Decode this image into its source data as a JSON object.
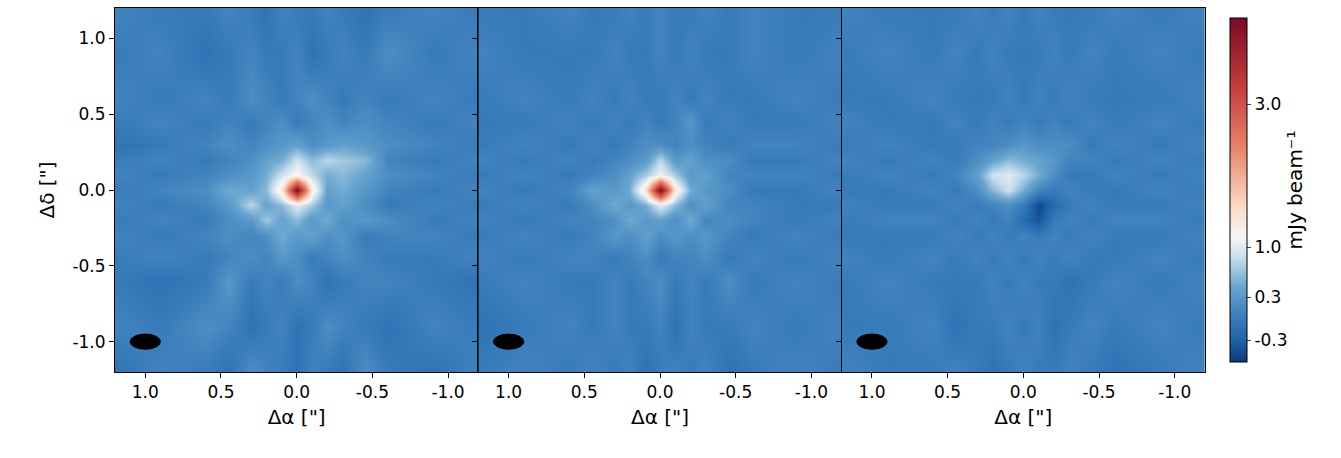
{
  "chart_data": [
    {
      "type": "heatmap",
      "x_label": "Δα [\"]",
      "y_label": "Δδ [\"]",
      "xlim": [
        1.2,
        -1.2
      ],
      "ylim": [
        -1.2,
        1.2
      ],
      "xticks": [
        {
          "value": 1,
          "label": "1.0"
        },
        0.5,
        {
          "value": 0,
          "label": "0.0"
        },
        -0.5,
        {
          "value": -1,
          "label": "-1.0"
        }
      ],
      "yticks": [
        {
          "value": -1,
          "label": "-1.0"
        },
        -0.5,
        {
          "value": 0,
          "label": "0.0"
        },
        0.5,
        {
          "value": 1,
          "label": "1.0"
        }
      ],
      "beam": {
        "x": 1.0,
        "y": -1.0,
        "major": 0.2,
        "minor": 0.1,
        "color": "#000000"
      },
      "x": [
        -1.2,
        -0.9,
        -0.6,
        -0.45,
        -0.3,
        -0.2,
        -0.1,
        0,
        0.1,
        0.2,
        0.3,
        0.45,
        0.6,
        0.9,
        1.2
      ],
      "y": [
        -1.2,
        -0.9,
        -0.6,
        -0.45,
        -0.3,
        -0.2,
        -0.1,
        0,
        0.1,
        0.2,
        0.3,
        0.45,
        0.6,
        0.9,
        1.2
      ],
      "z": [
        [
          0.1,
          -0.1,
          0.0,
          0.2,
          -0.1,
          0.0,
          0.1,
          -0.1,
          0.0,
          0.1,
          0.2,
          -0.1,
          0.0,
          0.1,
          -0.1
        ],
        [
          0.0,
          0.1,
          -0.1,
          0.0,
          0.1,
          0.2,
          0.0,
          -0.1,
          0.1,
          0.0,
          -0.1,
          0.1,
          0.2,
          0.0,
          0.1
        ],
        [
          -0.1,
          0.0,
          0.1,
          0.1,
          0.0,
          -0.1,
          0.1,
          0.2,
          0.0,
          0.1,
          0.0,
          0.3,
          0.0,
          -0.1,
          0.0
        ],
        [
          0.1,
          0.0,
          0.0,
          0.1,
          0.2,
          0.1,
          0.0,
          0.2,
          0.3,
          0.1,
          0.2,
          0.1,
          0.0,
          0.1,
          0.0
        ],
        [
          0.0,
          0.1,
          0.1,
          0.0,
          0.3,
          0.2,
          0.4,
          0.3,
          0.5,
          0.2,
          0.1,
          0.2,
          0.1,
          0.0,
          0.1
        ],
        [
          0.1,
          0.0,
          0.2,
          0.3,
          0.2,
          0.5,
          0.3,
          0.6,
          0.4,
          0.7,
          0.3,
          0.2,
          0.0,
          0.1,
          0.0
        ],
        [
          0.0,
          0.1,
          0.0,
          0.2,
          0.4,
          0.3,
          0.7,
          1.0,
          0.6,
          0.4,
          0.8,
          0.3,
          0.1,
          0.0,
          0.1
        ],
        [
          0.1,
          0.0,
          0.1,
          0.3,
          0.5,
          0.4,
          1.3,
          4.2,
          1.4,
          0.6,
          0.4,
          0.5,
          0.2,
          0.1,
          0.0
        ],
        [
          0.0,
          0.1,
          0.2,
          0.4,
          0.6,
          0.5,
          0.8,
          1.2,
          0.9,
          0.5,
          0.3,
          0.2,
          0.1,
          0.0,
          0.1
        ],
        [
          0.1,
          0.0,
          0.1,
          0.6,
          0.7,
          0.8,
          0.6,
          0.9,
          0.5,
          0.4,
          0.2,
          0.1,
          0.0,
          0.1,
          0.0
        ],
        [
          0.0,
          0.1,
          0.2,
          0.3,
          0.4,
          0.3,
          0.2,
          0.4,
          0.3,
          0.2,
          0.1,
          0.2,
          0.1,
          0.0,
          -0.1
        ],
        [
          0.1,
          0.0,
          0.1,
          0.2,
          0.1,
          0.2,
          0.1,
          0.0,
          0.2,
          0.1,
          0.0,
          0.1,
          0.0,
          0.1,
          0.0
        ],
        [
          0.0,
          0.1,
          0.0,
          0.1,
          0.0,
          0.1,
          0.2,
          0.1,
          0.0,
          0.1,
          0.2,
          0.0,
          0.1,
          0.0,
          0.1
        ],
        [
          0.1,
          0.0,
          0.2,
          0.0,
          0.1,
          0.0,
          -0.1,
          0.1,
          0.0,
          0.0,
          0.1,
          0.0,
          -0.1,
          0.1,
          0.0
        ],
        [
          0.0,
          0.1,
          0.0,
          -0.1,
          0.0,
          0.1,
          0.0,
          0.0,
          0.1,
          -0.1,
          0.0,
          0.1,
          0.0,
          0.0,
          0.1
        ]
      ]
    },
    {
      "type": "heatmap",
      "x_label": "Δα [\"]",
      "tick_labels": "x",
      "xlim": [
        1.2,
        -1.2
      ],
      "ylim": [
        -1.2,
        1.2
      ],
      "xticks": [
        {
          "value": 1,
          "label": "1.0"
        },
        0.5,
        {
          "value": 0,
          "label": "0.0"
        },
        -0.5,
        {
          "value": -1,
          "label": "-1.0"
        }
      ],
      "yticks": [
        {
          "value": -1,
          "label": "-1.0"
        },
        -0.5,
        {
          "value": 0,
          "label": "0.0"
        },
        0.5,
        {
          "value": 1,
          "label": "1.0"
        }
      ],
      "beam": {
        "x": 1.0,
        "y": -1.0,
        "major": 0.2,
        "minor": 0.1,
        "color": "#000000"
      },
      "x": [
        -1.2,
        -0.9,
        -0.6,
        -0.45,
        -0.3,
        -0.2,
        -0.1,
        0,
        0.1,
        0.2,
        0.3,
        0.45,
        0.6,
        0.9,
        1.2
      ],
      "y": [
        -1.2,
        -0.9,
        -0.6,
        -0.45,
        -0.3,
        -0.2,
        -0.1,
        0,
        0.1,
        0.2,
        0.3,
        0.45,
        0.6,
        0.9,
        1.2
      ],
      "z": [
        [
          0.0,
          0.1,
          0.0,
          -0.1,
          0.1,
          0.0,
          0.1,
          0.0,
          -0.1,
          0.1,
          0.0,
          0.1,
          0.0,
          0.1,
          0.0
        ],
        [
          0.1,
          0.0,
          0.1,
          0.0,
          0.0,
          0.1,
          -0.1,
          0.1,
          0.0,
          0.0,
          0.1,
          0.0,
          0.1,
          0.0,
          -0.1
        ],
        [
          0.0,
          0.1,
          0.0,
          0.2,
          0.0,
          0.1,
          0.0,
          0.2,
          0.1,
          0.0,
          0.1,
          0.0,
          0.0,
          0.1,
          0.0
        ],
        [
          0.1,
          0.0,
          0.1,
          0.0,
          0.2,
          0.1,
          0.1,
          0.0,
          0.2,
          0.1,
          0.0,
          0.1,
          0.1,
          0.0,
          0.1
        ],
        [
          0.0,
          0.1,
          0.0,
          0.1,
          0.3,
          0.2,
          0.3,
          0.2,
          0.4,
          0.2,
          0.3,
          0.1,
          0.0,
          0.1,
          0.0
        ],
        [
          0.1,
          0.0,
          0.1,
          0.2,
          0.1,
          0.5,
          0.2,
          0.4,
          0.3,
          0.5,
          0.2,
          0.1,
          0.1,
          0.0,
          0.1
        ],
        [
          0.0,
          0.0,
          0.1,
          0.1,
          0.4,
          0.2,
          0.6,
          1.0,
          0.5,
          0.3,
          0.5,
          0.2,
          0.0,
          0.1,
          0.0
        ],
        [
          0.1,
          0.0,
          0.0,
          0.2,
          0.3,
          0.5,
          1.3,
          4.2,
          1.4,
          0.5,
          0.3,
          0.4,
          0.1,
          0.0,
          0.1
        ],
        [
          0.0,
          0.1,
          0.1,
          0.1,
          0.4,
          0.3,
          0.7,
          1.1,
          0.7,
          0.4,
          0.2,
          0.1,
          0.0,
          0.1,
          0.0
        ],
        [
          0.1,
          0.0,
          0.0,
          0.2,
          0.2,
          0.4,
          0.3,
          0.8,
          0.3,
          0.2,
          0.1,
          0.0,
          0.1,
          0.0,
          0.1
        ],
        [
          0.0,
          0.1,
          0.1,
          0.0,
          0.1,
          0.2,
          0.1,
          0.2,
          0.2,
          0.1,
          0.0,
          0.1,
          0.0,
          0.1,
          0.0
        ],
        [
          0.1,
          0.0,
          0.0,
          0.1,
          0.0,
          0.3,
          0.1,
          0.0,
          0.1,
          0.0,
          0.1,
          0.0,
          0.1,
          0.0,
          0.0
        ],
        [
          0.0,
          0.1,
          0.0,
          0.0,
          0.1,
          0.0,
          0.1,
          0.0,
          0.0,
          0.1,
          0.0,
          0.1,
          0.0,
          0.1,
          0.0
        ],
        [
          0.1,
          0.0,
          0.1,
          0.0,
          0.0,
          0.1,
          0.0,
          0.1,
          0.0,
          0.0,
          0.1,
          0.0,
          0.0,
          0.0,
          0.1
        ],
        [
          0.0,
          0.0,
          0.1,
          0.0,
          0.1,
          0.0,
          0.0,
          0.1,
          0.0,
          0.1,
          0.0,
          0.0,
          0.1,
          0.0,
          0.0
        ]
      ]
    },
    {
      "type": "heatmap",
      "x_label": "Δα [\"]",
      "tick_labels": "x",
      "xlim": [
        1.2,
        -1.2
      ],
      "ylim": [
        -1.2,
        1.2
      ],
      "xticks": [
        {
          "value": 1,
          "label": "1.0"
        },
        0.5,
        {
          "value": 0,
          "label": "0.0"
        },
        -0.5,
        {
          "value": -1,
          "label": "-1.0"
        }
      ],
      "yticks": [
        {
          "value": -1,
          "label": "-1.0"
        },
        -0.5,
        {
          "value": 0,
          "label": "0.0"
        },
        0.5,
        {
          "value": 1,
          "label": "1.0"
        }
      ],
      "beam": {
        "x": 1.0,
        "y": -1.0,
        "major": 0.2,
        "minor": 0.1,
        "color": "#000000"
      },
      "x": [
        -1.2,
        -0.9,
        -0.6,
        -0.45,
        -0.3,
        -0.2,
        -0.1,
        0,
        0.1,
        0.2,
        0.3,
        0.45,
        0.6,
        0.9,
        1.2
      ],
      "y": [
        -1.2,
        -0.9,
        -0.6,
        -0.45,
        -0.3,
        -0.2,
        -0.1,
        0,
        0.1,
        0.2,
        0.3,
        0.45,
        0.6,
        0.9,
        1.2
      ],
      "z": [
        [
          0.1,
          0.0,
          -0.1,
          0.0,
          0.1,
          0.0,
          0.0,
          0.1,
          0.0,
          -0.1,
          0.0,
          0.1,
          0.0,
          0.0,
          0.1
        ],
        [
          0.0,
          0.1,
          0.0,
          0.1,
          0.0,
          -0.1,
          0.1,
          0.0,
          0.1,
          0.0,
          0.0,
          -0.1,
          0.1,
          0.0,
          0.0
        ],
        [
          0.1,
          0.0,
          0.1,
          0.0,
          -0.1,
          0.0,
          0.0,
          0.1,
          0.0,
          0.1,
          0.0,
          0.0,
          0.0,
          0.1,
          0.0
        ],
        [
          0.0,
          0.1,
          0.0,
          0.0,
          0.1,
          0.0,
          0.1,
          0.0,
          0.1,
          0.0,
          0.1,
          0.0,
          0.1,
          0.0,
          0.1
        ],
        [
          0.1,
          0.0,
          0.0,
          0.1,
          0.0,
          0.1,
          0.0,
          0.1,
          0.0,
          0.1,
          0.0,
          0.1,
          0.0,
          0.0,
          0.0
        ],
        [
          0.0,
          0.1,
          0.1,
          0.0,
          0.1,
          0.0,
          -0.4,
          -0.2,
          0.1,
          0.0,
          0.1,
          0.0,
          0.1,
          0.1,
          0.0
        ],
        [
          0.1,
          0.0,
          0.0,
          0.1,
          0.0,
          -0.2,
          -0.5,
          0.0,
          0.2,
          0.1,
          0.0,
          0.1,
          0.0,
          0.0,
          0.1
        ],
        [
          0.0,
          0.1,
          0.0,
          0.0,
          0.1,
          0.0,
          0.1,
          0.5,
          0.9,
          0.6,
          0.2,
          0.0,
          0.1,
          0.0,
          0.0
        ],
        [
          0.1,
          0.0,
          0.1,
          0.0,
          0.0,
          0.2,
          0.5,
          0.8,
          1.0,
          0.9,
          0.4,
          0.1,
          0.0,
          0.1,
          0.0
        ],
        [
          0.0,
          0.1,
          0.0,
          0.1,
          0.1,
          0.3,
          0.4,
          0.5,
          0.6,
          0.4,
          0.2,
          0.0,
          0.1,
          0.0,
          0.1
        ],
        [
          0.1,
          0.0,
          0.1,
          0.0,
          0.2,
          0.2,
          0.2,
          0.3,
          0.2,
          0.1,
          0.1,
          0.0,
          0.0,
          0.1,
          0.0
        ],
        [
          0.0,
          0.1,
          0.0,
          0.1,
          0.0,
          0.1,
          0.0,
          0.1,
          0.0,
          0.1,
          0.0,
          0.1,
          0.0,
          0.0,
          0.1
        ],
        [
          0.1,
          0.0,
          0.0,
          0.0,
          0.1,
          0.0,
          0.1,
          0.0,
          0.1,
          0.0,
          0.0,
          0.0,
          0.1,
          0.0,
          0.0
        ],
        [
          0.0,
          0.1,
          0.0,
          0.1,
          0.0,
          0.1,
          0.0,
          0.0,
          0.0,
          0.1,
          0.0,
          0.1,
          0.0,
          0.1,
          0.0
        ],
        [
          0.1,
          0.0,
          0.1,
          0.0,
          0.0,
          0.0,
          0.1,
          0.0,
          0.1,
          0.0,
          0.1,
          0.0,
          0.0,
          0.0,
          0.1
        ]
      ],
      "colorbar": {
        "title": "mJy beam⁻¹",
        "range": [
          -0.6,
          4.2
        ],
        "ticks": [
          -0.3,
          0.3,
          {
            "value": 1,
            "label": "1.0"
          },
          {
            "value": 3,
            "label": "3.0"
          }
        ]
      }
    }
  ]
}
